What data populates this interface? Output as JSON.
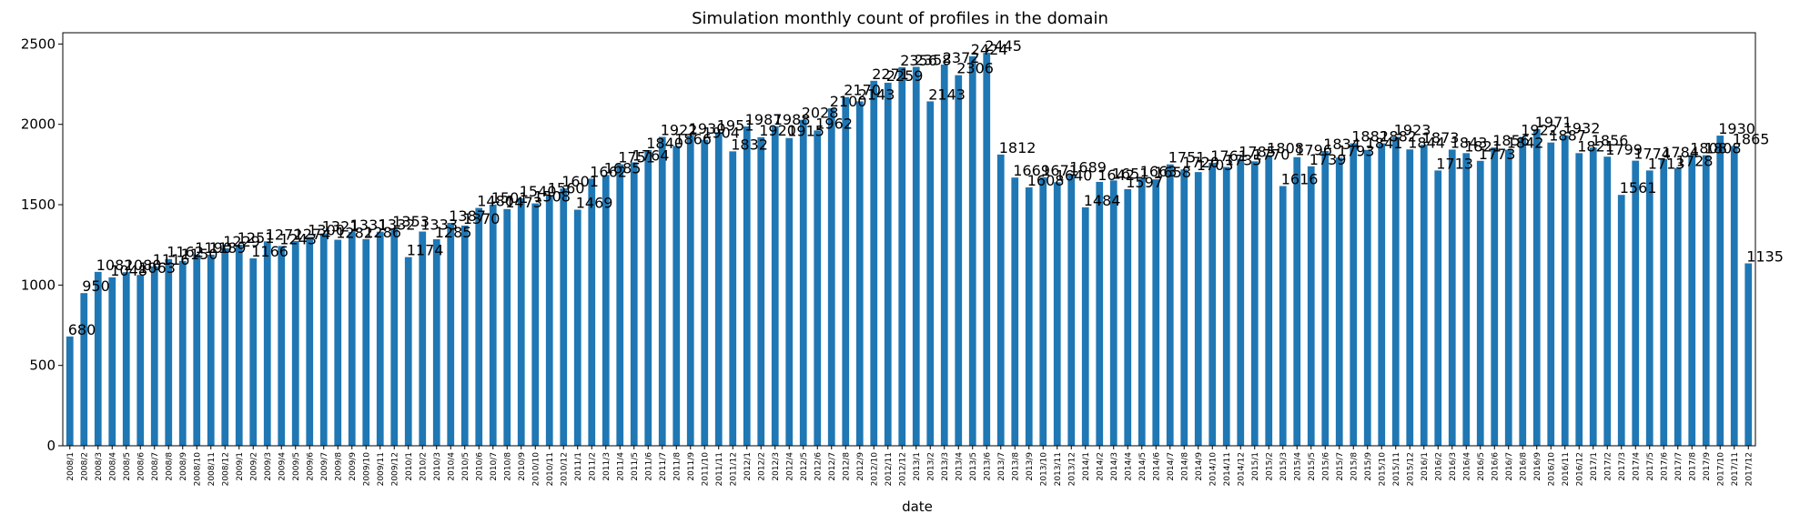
{
  "chart_data": {
    "type": "bar",
    "title": "Simulation monthly count of profiles in the domain",
    "xlabel": "date",
    "ylabel": "",
    "ylim": [
      0,
      2570
    ],
    "yticks": [
      0,
      500,
      1000,
      1500,
      2000,
      2500
    ],
    "grid": false,
    "legend": "none",
    "bar_color": "#1f77b4",
    "categories": [
      "2008/1",
      "2008/2",
      "2008/3",
      "2008/4",
      "2008/5",
      "2008/6",
      "2008/7",
      "2008/8",
      "2008/9",
      "2008/10",
      "2008/11",
      "2008/12",
      "2009/1",
      "2009/2",
      "2009/3",
      "2009/4",
      "2009/5",
      "2009/6",
      "2009/7",
      "2009/8",
      "2009/9",
      "2009/10",
      "2009/11",
      "2009/12",
      "2010/1",
      "2010/2",
      "2010/3",
      "2010/4",
      "2010/5",
      "2010/6",
      "2010/7",
      "2010/8",
      "2010/9",
      "2010/10",
      "2010/11",
      "2010/12",
      "2011/1",
      "2011/2",
      "2011/3",
      "2011/4",
      "2011/5",
      "2011/6",
      "2011/7",
      "2011/8",
      "2011/9",
      "2011/10",
      "2011/11",
      "2011/12",
      "2012/1",
      "2012/2",
      "2012/3",
      "2012/4",
      "2012/5",
      "2012/6",
      "2012/7",
      "2012/8",
      "2012/9",
      "2012/10",
      "2012/11",
      "2012/12",
      "2013/1",
      "2013/2",
      "2013/3",
      "2013/4",
      "2013/5",
      "2013/6",
      "2013/7",
      "2013/8",
      "2013/9",
      "2013/10",
      "2013/11",
      "2013/12",
      "2014/1",
      "2014/2",
      "2014/3",
      "2014/4",
      "2014/5",
      "2014/6",
      "2014/7",
      "2014/8",
      "2014/9",
      "2014/10",
      "2014/11",
      "2014/12",
      "2015/1",
      "2015/2",
      "2015/3",
      "2015/4",
      "2015/5",
      "2015/6",
      "2015/7",
      "2015/8",
      "2015/9",
      "2015/10",
      "2015/11",
      "2015/12",
      "2016/1",
      "2016/2",
      "2016/3",
      "2016/4",
      "2016/5",
      "2016/6",
      "2016/7",
      "2016/8",
      "2016/9",
      "2016/10",
      "2016/11",
      "2016/12",
      "2017/1",
      "2017/2",
      "2017/3",
      "2017/4",
      "2017/5",
      "2017/6",
      "2017/7",
      "2017/8",
      "2017/9",
      "2017/10",
      "2017/11",
      "2017/12"
    ],
    "values": [
      680,
      950,
      1082,
      1048,
      1080,
      1063,
      1116,
      1162,
      1150,
      1190,
      1189,
      1229,
      1251,
      1166,
      1272,
      1243,
      1274,
      1300,
      1321,
      1282,
      1331,
      1286,
      1332,
      1353,
      1174,
      1333,
      1285,
      1387,
      1370,
      1480,
      1501,
      1473,
      1540,
      1508,
      1560,
      1601,
      1469,
      1662,
      1685,
      1751,
      1764,
      1840,
      1922,
      1866,
      1930,
      1904,
      1951,
      1832,
      1987,
      1920,
      1988,
      1915,
      2028,
      1962,
      2100,
      2170,
      2143,
      2271,
      2259,
      2356,
      2358,
      2143,
      2372,
      2306,
      2424,
      2445,
      1812,
      1669,
      1608,
      1671,
      1640,
      1689,
      1484,
      1642,
      1651,
      1597,
      1663,
      1658,
      1751,
      1720,
      1703,
      1761,
      1735,
      1785,
      1770,
      1808,
      1616,
      1796,
      1739,
      1834,
      1793,
      1882,
      1841,
      1882,
      1923,
      1844,
      1873,
      1713,
      1843,
      1821,
      1773,
      1856,
      1842,
      1922,
      1971,
      1887,
      1932,
      1821,
      1856,
      1799,
      1561,
      1774,
      1713,
      1784,
      1728,
      1808,
      1808,
      1930,
      1865,
      1135
    ],
    "data_labels": [
      "680",
      "950",
      "1082",
      "1048",
      "1080",
      "1063",
      "1116",
      "1162",
      "1150",
      "1190",
      "1189",
      "1229",
      "1251",
      "1166",
      "1272",
      "1243",
      "1274",
      "1300",
      "1321",
      "1282",
      "1331",
      "1286",
      "1332",
      "1353",
      "1174",
      "1333",
      "1285",
      "1387",
      "1370",
      "1480",
      "1501",
      "1473",
      "1540",
      "1508",
      "1560",
      "1601",
      "1469",
      "1662",
      "1685",
      "1751",
      "1764",
      "1840",
      "1922",
      "1866",
      "1930",
      "1904",
      "1951",
      "1832",
      "1987",
      "1920",
      "1988",
      "1915",
      "2028",
      "1962",
      "2100",
      "2170",
      "2143",
      "2271",
      "2259",
      "2356",
      "2358",
      "2143",
      "2372",
      "2306",
      "2424",
      "2445",
      "1812",
      "1669",
      "1608",
      "1671",
      "1640",
      "1689",
      "1484",
      "1642",
      "1651",
      "1597",
      "1663",
      "1658",
      "1751",
      "1720",
      "1703",
      "1761",
      "1735",
      "1785",
      "1770",
      "1808",
      "1616",
      "1796",
      "1739",
      "1834",
      "1793",
      "1882",
      "1841",
      "1882",
      "1923",
      "1844",
      "1873",
      "1713",
      "1843",
      "1821",
      "1773",
      "1856",
      "1842",
      "1922",
      "1971",
      "1887",
      "1932",
      "1821",
      "1856",
      "1799",
      "1561",
      "1774",
      "1713",
      "1784",
      "1728",
      "1808",
      "1808",
      "1930",
      "1865",
      "1135"
    ]
  }
}
